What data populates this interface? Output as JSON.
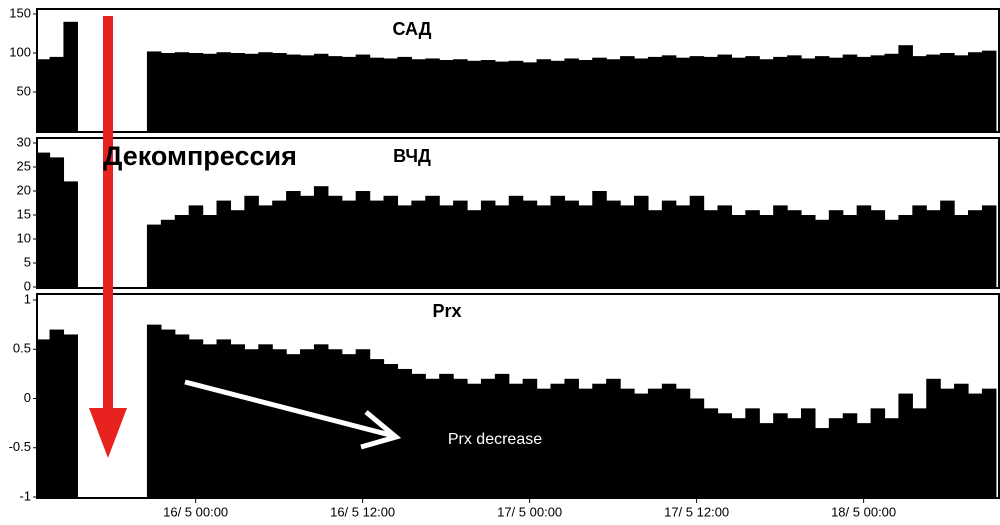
{
  "chart_data": [
    {
      "type": "bar",
      "title": "САД",
      "color": "#000000",
      "x": [
        -11,
        -10,
        -9,
        -8,
        -7,
        -6,
        -5,
        -4,
        -3,
        -2,
        -1,
        0,
        1,
        2,
        3,
        4,
        5,
        6,
        7,
        8,
        9,
        10,
        11,
        12,
        13,
        14,
        15,
        16,
        17,
        18,
        19,
        20,
        21,
        22,
        23,
        24,
        25,
        26,
        27,
        28,
        29,
        30,
        31,
        32,
        33,
        34,
        35,
        36,
        37,
        38,
        39,
        40,
        41,
        42,
        43,
        44,
        45,
        46,
        47,
        48,
        49,
        50,
        51,
        52,
        53,
        54,
        55,
        56,
        57
      ],
      "values": [
        92,
        95,
        140,
        null,
        null,
        null,
        null,
        null,
        102,
        100,
        101,
        100,
        99,
        101,
        100,
        99,
        101,
        100,
        98,
        97,
        99,
        96,
        95,
        98,
        94,
        93,
        95,
        92,
        93,
        91,
        92,
        90,
        91,
        89,
        90,
        88,
        92,
        90,
        93,
        91,
        94,
        92,
        96,
        93,
        95,
        97,
        94,
        96,
        95,
        98,
        94,
        96,
        92,
        95,
        97,
        93,
        96,
        94,
        98,
        95,
        97,
        99,
        110,
        96,
        98,
        100,
        97,
        101,
        103
      ],
      "xlim": [
        -11.4,
        57.8
      ],
      "ylim": [
        0,
        150
      ],
      "yticks": [
        50,
        100,
        150
      ]
    },
    {
      "type": "bar",
      "title": "ВЧД",
      "annotation": "Декомпрессия",
      "color": "#000000",
      "x": [
        -11,
        -10,
        -9,
        -8,
        -7,
        -6,
        -5,
        -4,
        -3,
        -2,
        -1,
        0,
        1,
        2,
        3,
        4,
        5,
        6,
        7,
        8,
        9,
        10,
        11,
        12,
        13,
        14,
        15,
        16,
        17,
        18,
        19,
        20,
        21,
        22,
        23,
        24,
        25,
        26,
        27,
        28,
        29,
        30,
        31,
        32,
        33,
        34,
        35,
        36,
        37,
        38,
        39,
        40,
        41,
        42,
        43,
        44,
        45,
        46,
        47,
        48,
        49,
        50,
        51,
        52,
        53,
        54,
        55,
        56,
        57
      ],
      "values": [
        28,
        27,
        22,
        null,
        null,
        null,
        null,
        null,
        13,
        14,
        15,
        17,
        15,
        18,
        16,
        19,
        17,
        18,
        20,
        19,
        21,
        19,
        18,
        20,
        18,
        19,
        17,
        18,
        19,
        17,
        18,
        16,
        18,
        17,
        19,
        18,
        17,
        19,
        18,
        17,
        20,
        18,
        17,
        19,
        16,
        18,
        17,
        19,
        16,
        17,
        15,
        16,
        15,
        17,
        16,
        15,
        14,
        16,
        15,
        17,
        16,
        14,
        15,
        17,
        16,
        18,
        15,
        16,
        17
      ],
      "xlim": [
        -11.4,
        57.8
      ],
      "ylim": [
        0,
        30
      ],
      "yticks": [
        0,
        5,
        10,
        15,
        20,
        25,
        30
      ]
    },
    {
      "type": "bar",
      "title": "Prx",
      "annotation": "Prx decrease",
      "color": "#000000",
      "x": [
        -11,
        -10,
        -9,
        -8,
        -7,
        -6,
        -5,
        -4,
        -3,
        -2,
        -1,
        0,
        1,
        2,
        3,
        4,
        5,
        6,
        7,
        8,
        9,
        10,
        11,
        12,
        13,
        14,
        15,
        16,
        17,
        18,
        19,
        20,
        21,
        22,
        23,
        24,
        25,
        26,
        27,
        28,
        29,
        30,
        31,
        32,
        33,
        34,
        35,
        36,
        37,
        38,
        39,
        40,
        41,
        42,
        43,
        44,
        45,
        46,
        47,
        48,
        49,
        50,
        51,
        52,
        53,
        54,
        55,
        56,
        57
      ],
      "values": [
        0.6,
        0.7,
        0.65,
        null,
        null,
        null,
        null,
        null,
        0.75,
        0.7,
        0.65,
        0.6,
        0.55,
        0.6,
        0.55,
        0.5,
        0.55,
        0.5,
        0.45,
        0.5,
        0.55,
        0.5,
        0.45,
        0.5,
        0.4,
        0.35,
        0.3,
        0.25,
        0.2,
        0.25,
        0.2,
        0.15,
        0.2,
        0.25,
        0.15,
        0.2,
        0.1,
        0.15,
        0.2,
        0.1,
        0.15,
        0.2,
        0.1,
        0.05,
        0.1,
        0.15,
        0.1,
        0.0,
        -0.1,
        -0.15,
        -0.2,
        -0.1,
        -0.25,
        -0.15,
        -0.2,
        -0.1,
        -0.3,
        -0.2,
        -0.15,
        -0.25,
        -0.1,
        -0.2,
        0.05,
        -0.1,
        0.2,
        0.1,
        0.15,
        0.05,
        0.1
      ],
      "xlim": [
        -11.4,
        57.8
      ],
      "ylim": [
        -1,
        1
      ],
      "yticks": [
        -1,
        -0.5,
        0,
        0.5,
        1
      ],
      "xticks": [
        {
          "value": 0,
          "label": "16/ 5 00:00"
        },
        {
          "value": 12,
          "label": "16/ 5 12:00"
        },
        {
          "value": 24,
          "label": "17/ 5 00:00"
        },
        {
          "value": 36,
          "label": "17/ 5 12:00"
        },
        {
          "value": 48,
          "label": "18/ 5 00:00"
        }
      ]
    }
  ]
}
